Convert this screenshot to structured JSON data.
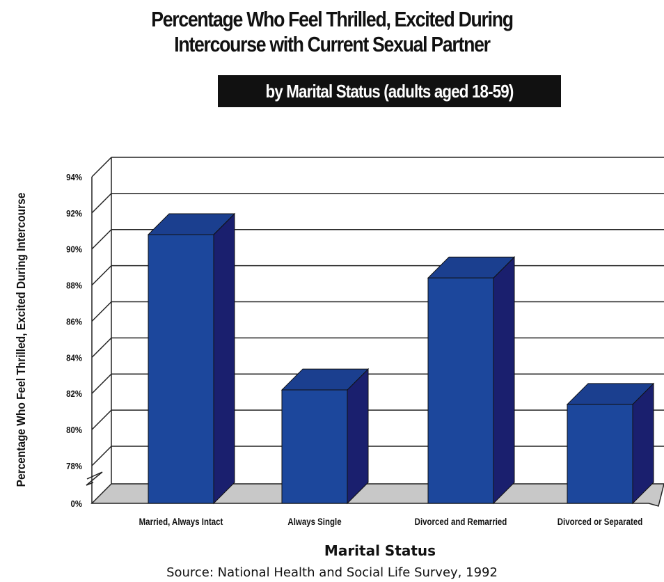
{
  "chart_data": {
    "type": "bar",
    "title": "Percentage Who Feel Thrilled, Excited During Intercourse with Current Sexual Partner",
    "title_lines": [
      "Percentage Who Feel Thrilled, Excited During",
      "Intercourse with Current Sexual Partner"
    ],
    "subtitle": "by Marital Status (adults aged 18-59)",
    "xlabel": "Marital Status",
    "ylabel": "Percentage Who Feel Thrilled, Excited During Intercourse",
    "categories": [
      "Married, Always Intact",
      "Always Single",
      "Divorced and Remarried",
      "Divorced or Separated"
    ],
    "values": [
      90.8,
      82.2,
      88.4,
      81.4
    ],
    "y_ticks": [
      "94%",
      "92%",
      "90%",
      "88%",
      "86%",
      "84%",
      "82%",
      "80%",
      "78%",
      "0%"
    ],
    "y_tick_values": [
      94,
      92,
      90,
      88,
      86,
      84,
      82,
      80,
      78
    ],
    "ylim": [
      78,
      94
    ],
    "axis_break": true,
    "grid": true,
    "source": "Source: National Health and Social Life Survey, 1992",
    "colors": {
      "bar_front": "#1c479c",
      "bar_side": "#1a1f6e",
      "bar_top": "#1b3f8f",
      "floor": "#c8c8c8"
    }
  }
}
